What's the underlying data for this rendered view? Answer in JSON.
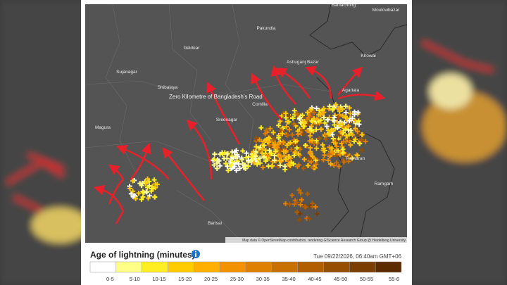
{
  "map": {
    "place_labels": [
      "Moulovibazar",
      "Baniachong",
      "Pakundia",
      "Deldúar",
      "Sujanagar",
      "Shibalaya",
      "Magura",
      "Sreenagar",
      "Ashuganj Bazar",
      "Agartala",
      "Khowai",
      "Comilla",
      "Barisal",
      "Ramgarh",
      "Patharan"
    ],
    "annotation": "Zero Kilometre of Bangladesh's Road",
    "attribution": "Map data © OpenStreetMap contributors, rendering GIScience Research Group @ Heidelberg University"
  },
  "legend": {
    "title": "Age of lightning (minutes)",
    "timestamp": "Tue 09/22/2026, 06:40am GMT+06",
    "bins": [
      {
        "label": "0-5",
        "color": "#ffffff"
      },
      {
        "label": "5-10",
        "color": "#ffff88"
      },
      {
        "label": "10-15",
        "color": "#ffee22"
      },
      {
        "label": "15-20",
        "color": "#ffcc00"
      },
      {
        "label": "20-25",
        "color": "#ffb000"
      },
      {
        "label": "25-30",
        "color": "#f39200"
      },
      {
        "label": "30-35",
        "color": "#df8000"
      },
      {
        "label": "35-40",
        "color": "#c87000"
      },
      {
        "label": "40-45",
        "color": "#b05e00"
      },
      {
        "label": "45-50",
        "color": "#964e00"
      },
      {
        "label": "50-55",
        "color": "#7a3e00"
      },
      {
        "label": "55-6",
        "color": "#5a2c00"
      }
    ]
  }
}
